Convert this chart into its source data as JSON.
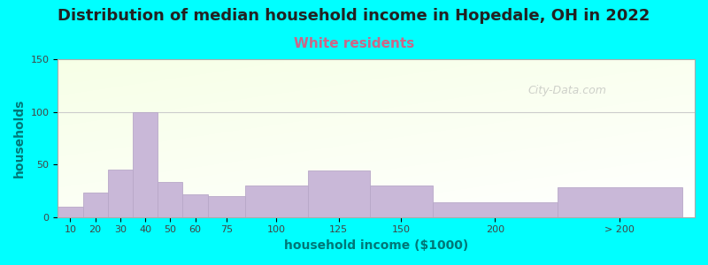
{
  "title": "Distribution of median household income in Hopedale, OH in 2022",
  "subtitle": "White residents",
  "xlabel": "household income ($1000)",
  "ylabel": "households",
  "background_color": "#00FFFF",
  "bar_color": "#C9B8D8",
  "bar_edge_color": "#B8A8C8",
  "title_fontsize": 13,
  "subtitle_fontsize": 11,
  "subtitle_color": "#CC6688",
  "ylabel_color": "#007777",
  "xlabel_color": "#007777",
  "tick_color": "#444444",
  "ylim": [
    0,
    150
  ],
  "yticks": [
    0,
    50,
    100,
    150
  ],
  "categories": [
    "10",
    "20",
    "30",
    "40",
    "50",
    "60",
    "75",
    "100",
    "125",
    "150",
    "200",
    "> 200"
  ],
  "values": [
    10,
    23,
    45,
    100,
    33,
    22,
    20,
    30,
    44,
    30,
    14,
    28
  ],
  "bar_lefts": [
    0,
    10,
    20,
    30,
    40,
    50,
    60,
    75,
    100,
    125,
    150,
    200
  ],
  "bar_rights": [
    10,
    20,
    30,
    40,
    50,
    60,
    75,
    100,
    125,
    150,
    200,
    250
  ],
  "tick_positions": [
    5,
    15,
    25,
    35,
    45,
    55,
    67.5,
    87.5,
    112.5,
    137.5,
    175,
    225
  ],
  "xlim": [
    0,
    255
  ],
  "watermark": "City-Data.com",
  "grid_y": 100
}
